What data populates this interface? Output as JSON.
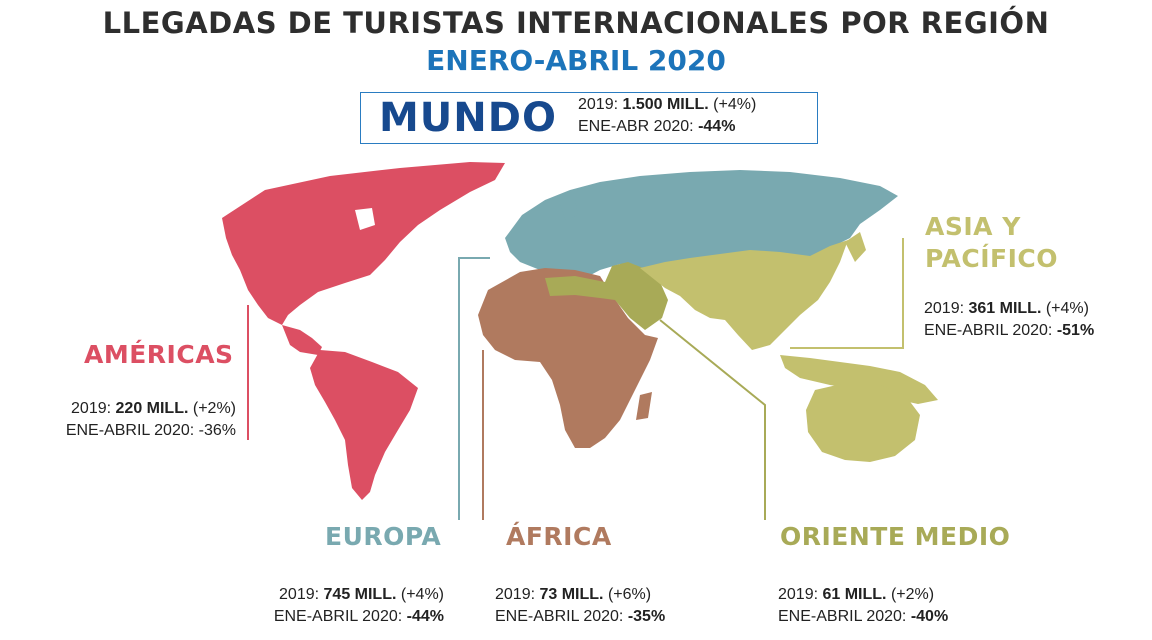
{
  "title": "LLEGADAS DE TURISTAS INTERNACIONALES POR REGIÓN",
  "subtitle": "ENERO-ABRIL 2020",
  "mundo": {
    "label": "MUNDO",
    "line1_prefix": "2019: ",
    "line1_value": "1.500 MILL.",
    "line1_change": " (+4%)",
    "line2_prefix": "ENE-ABR 2020: ",
    "line2_value": "-44%"
  },
  "colors": {
    "americas": "#dc4f63",
    "europa": "#79a9b0",
    "africa": "#b07a5f",
    "oriente_medio": "#a8aa57",
    "asia": "#c3c06e",
    "title_blue": "#1c74ba",
    "mundo_blue": "#17498e"
  },
  "regions": {
    "americas": {
      "name": "AMÉRICAS",
      "l1_prefix": "2019: ",
      "l1_value": "220 MILL.",
      "l1_change": " (+2%)",
      "l2_prefix": "ENE-ABRIL 2020: ",
      "l2_value": "-36%"
    },
    "europa": {
      "name": "EUROPA",
      "l1_prefix": "2019: ",
      "l1_value": "745 MILL.",
      "l1_change": " (+4%)",
      "l2_prefix": "ENE-ABRIL 2020: ",
      "l2_value": "-44%"
    },
    "africa": {
      "name": "ÁFRICA",
      "l1_prefix": "2019: ",
      "l1_value": "73 MILL.",
      "l1_change": " (+6%)",
      "l2_prefix": "ENE-ABRIL 2020: ",
      "l2_value": "-35%"
    },
    "oriente_medio": {
      "name": "ORIENTE MEDIO",
      "l1_prefix": "2019: ",
      "l1_value": "61 MILL.",
      "l1_change": " (+2%)",
      "l2_prefix": "ENE-ABRIL 2020: ",
      "l2_value": "-40%"
    },
    "asia": {
      "name1": "ASIA Y",
      "name2": "PACÍFICO",
      "l1_prefix": "2019: ",
      "l1_value": "361 MILL.",
      "l1_change": " (+4%)",
      "l2_prefix": "ENE-ABRIL 2020: ",
      "l2_value": "-51%"
    }
  }
}
